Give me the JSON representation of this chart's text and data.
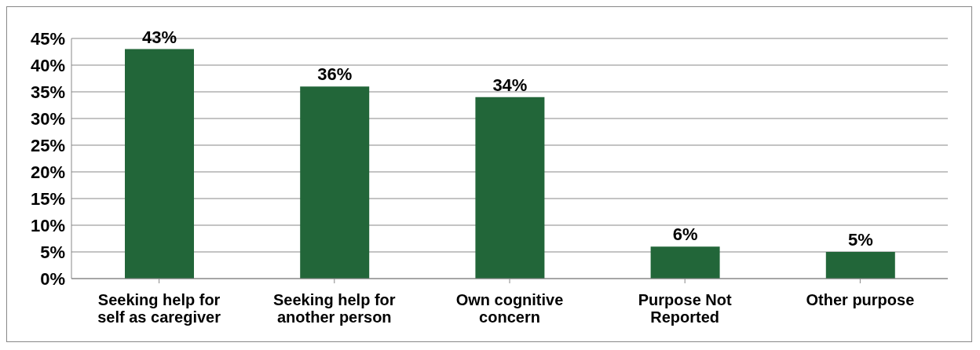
{
  "chart_data": {
    "type": "bar",
    "categories": [
      "Seeking help for self as caregiver",
      "Seeking help for another person",
      "Own cognitive concern",
      "Purpose Not Reported",
      "Other purpose"
    ],
    "values": [
      43,
      36,
      34,
      6,
      5
    ],
    "color": "#226639",
    "value_labels": [
      "43%",
      "36%",
      "34%",
      "6%",
      "5%"
    ],
    "ylim": [
      0,
      45
    ],
    "yticks": [
      {
        "value": 0,
        "label": "0%"
      },
      {
        "value": 5,
        "label": "5%"
      },
      {
        "value": 10,
        "label": "10%"
      },
      {
        "value": 15,
        "label": "15%"
      },
      {
        "value": 20,
        "label": "20%"
      },
      {
        "value": 25,
        "label": "25%"
      },
      {
        "value": 30,
        "label": "30%"
      },
      {
        "value": 35,
        "label": "35%"
      },
      {
        "value": 40,
        "label": "40%"
      },
      {
        "value": 45,
        "label": "45%"
      }
    ],
    "grid": "y"
  }
}
